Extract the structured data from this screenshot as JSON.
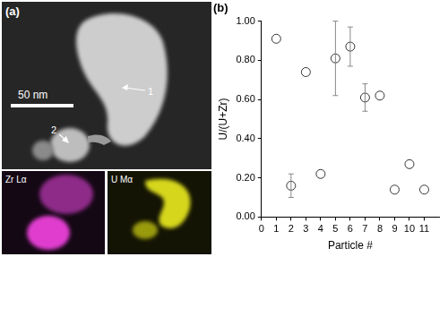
{
  "image_panel": {
    "label": "(a)",
    "scale_bar": "50 nm",
    "particle_labels": [
      "1",
      "2"
    ],
    "map_labels": [
      "Zr Lα",
      "U Mα"
    ]
  },
  "chart_data": {
    "type": "scatter",
    "title": "(b)",
    "x_label": "Particle #",
    "y_label": "U/(U+Zr)",
    "x": [
      1,
      2,
      3,
      4,
      5,
      6,
      7,
      8,
      9,
      10,
      11
    ],
    "values": [
      0.91,
      0.16,
      0.74,
      0.22,
      0.81,
      0.87,
      0.61,
      0.62,
      0.14,
      0.27,
      0.14
    ],
    "errors": [
      null,
      0.06,
      null,
      null,
      0.19,
      0.1,
      0.07,
      null,
      null,
      null,
      null
    ],
    "color": "#333333",
    "marker": "open_circle",
    "xlim": [
      0,
      12
    ],
    "xticks": [
      0,
      1,
      2,
      3,
      4,
      5,
      6,
      7,
      8,
      9,
      10,
      11
    ],
    "ylim": [
      0,
      1
    ],
    "yticks": [
      {
        "value": 0,
        "label": "0.00"
      },
      {
        "value": 0.2,
        "label": "0.20"
      },
      {
        "value": 0.4,
        "label": "0.40"
      },
      {
        "value": 0.6,
        "label": "0.60"
      },
      {
        "value": 0.8,
        "label": "0.80"
      },
      {
        "value": 1,
        "label": "1.00"
      }
    ],
    "grid": false
  }
}
